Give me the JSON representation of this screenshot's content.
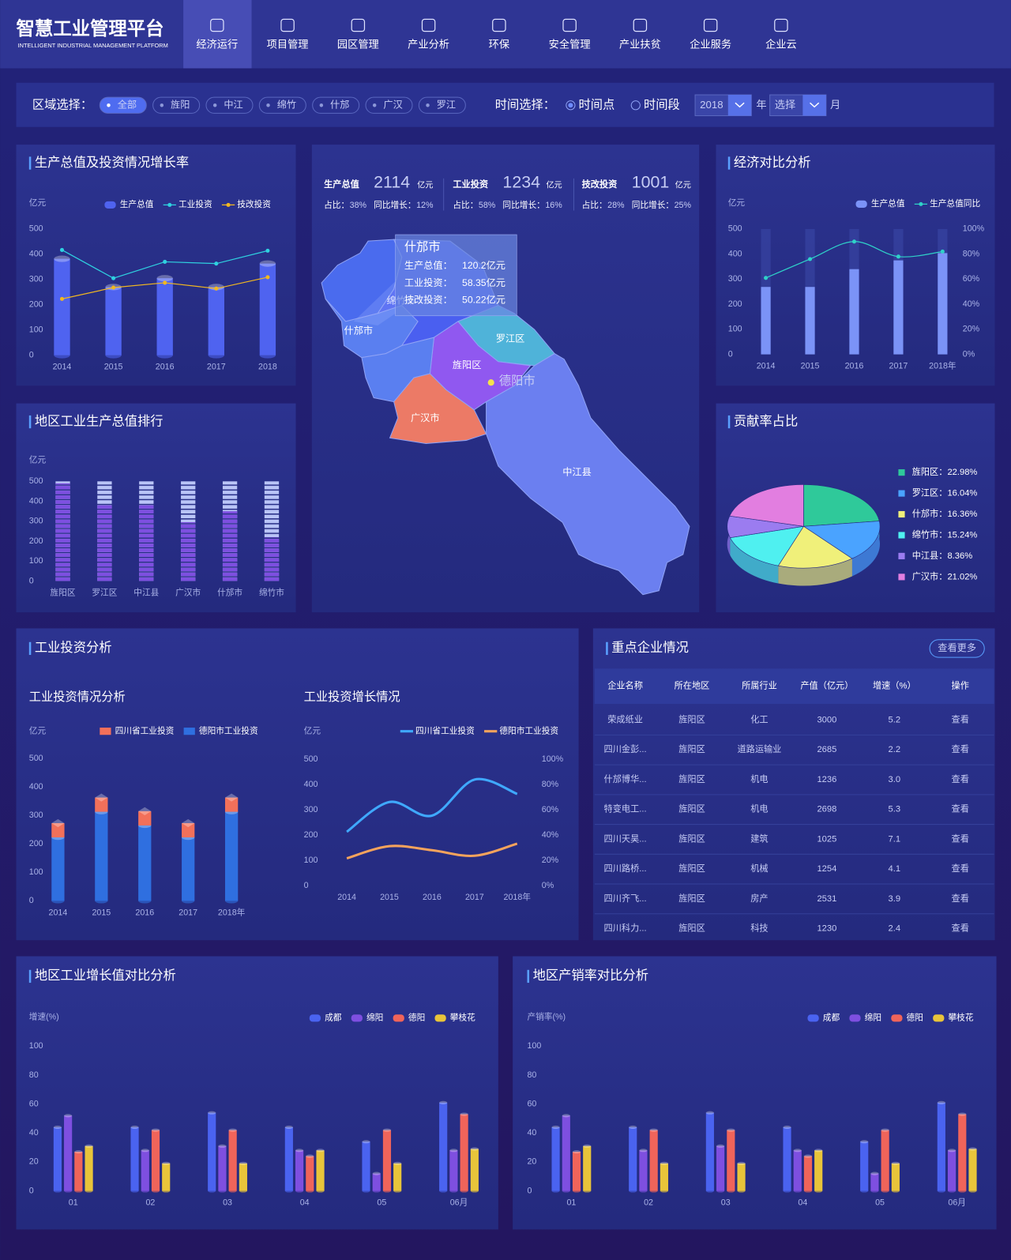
{
  "header": {
    "title": "智慧工业管理平台",
    "subtitle": "INTELLIGENT INDUSTRIAL MANAGEMENT PLATFORM",
    "nav": [
      "经济运行",
      "项目管理",
      "园区管理",
      "产业分析",
      "环保",
      "安全管理",
      "产业扶贫",
      "企业服务",
      "企业云"
    ]
  },
  "filters": {
    "region_label": "区域选择：",
    "regions": [
      "全部",
      "旌阳",
      "中江",
      "绵竹",
      "什邡",
      "广汉",
      "罗江"
    ],
    "time_label": "时间选择：",
    "time_options": [
      "时间点",
      "时间段"
    ],
    "year": "2018",
    "year_unit": "年",
    "month": "选择",
    "month_unit": "月"
  },
  "map": {
    "stats": [
      {
        "name": "生产总值",
        "value": 2114,
        "unit": "亿元",
        "share_label": "占比：",
        "share": "38%",
        "growth_label": "同比增长：",
        "growth": "12%"
      },
      {
        "name": "工业投资",
        "value": 1234,
        "unit": "亿元",
        "share_label": "占比：",
        "share": "58%",
        "growth_label": "同比增长：",
        "growth": "16%"
      },
      {
        "name": "技改投资",
        "value": 1001,
        "unit": "亿元",
        "share_label": "占比：",
        "share": "28%",
        "growth_label": "同比增长：",
        "growth": "25%"
      }
    ],
    "tooltip": {
      "title": "什邡市",
      "rows": [
        {
          "label": "生产总值：",
          "value": "120.2亿元"
        },
        {
          "label": "工业投资：",
          "value": "58.35亿元"
        },
        {
          "label": "技改投资：",
          "value": "50.22亿元"
        }
      ]
    },
    "regions": [
      "绵竹市",
      "什邡市",
      "罗江区",
      "旌阳区",
      "广汉市",
      "中江县"
    ],
    "city": "德阳市"
  },
  "investment_section": {
    "title": "工业投资分析"
  },
  "chart_data": [
    {
      "type": "bar",
      "title": "生产总值及投资情况增长率",
      "y_label": "亿元",
      "categories": [
        "2014",
        "2015",
        "2016",
        "2017",
        "2018"
      ],
      "ylim": [
        0,
        500
      ],
      "yticks": [
        0,
        100,
        200,
        300,
        400,
        500
      ],
      "series": [
        {
          "name": "生产总值",
          "type": "bar",
          "color": "#4f63f0",
          "values": [
            382,
            270,
            305,
            270,
            363
          ]
        },
        {
          "name": "工业投资",
          "type": "line",
          "color": "#2fd1e0",
          "values": [
            417,
            305,
            370,
            363,
            414
          ]
        },
        {
          "name": "技改投资",
          "type": "line",
          "color": "#f2b820",
          "values": [
            223,
            268,
            287,
            264,
            309
          ]
        }
      ]
    },
    {
      "type": "bar",
      "title": "地区工业生产总值排行",
      "y_label": "亿元",
      "categories": [
        "旌阳区",
        "罗江区",
        "中江县",
        "广汉市",
        "什邡市",
        "绵竹市"
      ],
      "ylim": [
        0,
        500
      ],
      "yticks": [
        0,
        100,
        200,
        300,
        400,
        500
      ],
      "values": [
        490,
        380,
        380,
        295,
        350,
        220
      ],
      "color": "#7d4fe0",
      "track_color": "#b9c4f7",
      "segmented": true
    },
    {
      "type": "bar",
      "title": "经济对比分析",
      "y_label": "亿元",
      "categories": [
        "2014",
        "2015",
        "2016",
        "2017",
        "2018年"
      ],
      "ylim": [
        0,
        500
      ],
      "yticks": [
        0,
        100,
        200,
        300,
        400,
        500
      ],
      "y2lim": [
        0,
        100
      ],
      "y2ticks": [
        {
          "value": 0,
          "label": "0%"
        },
        {
          "value": 20,
          "label": "20%"
        },
        {
          "value": 40,
          "label": "40%"
        },
        {
          "value": 60,
          "label": "60%"
        },
        {
          "value": 80,
          "label": "80%"
        },
        {
          "value": 100,
          "label": "100%"
        }
      ],
      "track_color": "#3a48a6",
      "smooth": true,
      "series": [
        {
          "name": "生产总值",
          "type": "bar",
          "color": "#7b93f7",
          "values": [
            269,
            269,
            340,
            375,
            404
          ]
        },
        {
          "name": "生产总值同比",
          "type": "line",
          "axis": "y2",
          "color": "#2fd1c8",
          "values": [
            61,
            76,
            90,
            78,
            82
          ]
        }
      ]
    },
    {
      "type": "pie",
      "title": "贡献率占比",
      "categories": [
        "旌阳区：",
        "罗江区：",
        "什邡市：",
        "绵竹市：",
        "中江县：",
        "广汉市："
      ],
      "values": [
        22.98,
        16.04,
        16.36,
        15.24,
        8.36,
        21.02
      ],
      "value_labels": [
        "22.98%",
        "16.04%",
        "16.36%",
        "15.24%",
        "8.36%",
        "21.02%"
      ],
      "colors": [
        "#2fc99a",
        "#4aa3ff",
        "#f0f07a",
        "#4ff0f0",
        "#9b7cf0",
        "#e27ee0"
      ]
    },
    {
      "type": "bar",
      "title": "工业投资情况分析",
      "y_label": "亿元",
      "categories": [
        "2014",
        "2015",
        "2016",
        "2017",
        "2018年"
      ],
      "ylim": [
        0,
        500
      ],
      "yticks": [
        0,
        100,
        200,
        300,
        400,
        500
      ],
      "stacked": true,
      "series": [
        {
          "name": "四川省工业投资",
          "type": "bar",
          "color": "#f2705a",
          "values": [
            50,
            50,
            50,
            50,
            50
          ]
        },
        {
          "name": "德阳市工业投资",
          "type": "bar",
          "color": "#2f6fe0",
          "values": [
            223,
            313,
            265,
            223,
            313
          ]
        }
      ]
    },
    {
      "type": "line",
      "title": "工业投资增长情况",
      "y_label": "亿元",
      "categories": [
        "2014",
        "2015",
        "2016",
        "2017",
        "2018年"
      ],
      "ylim": [
        0,
        500
      ],
      "yticks": [
        0,
        100,
        200,
        300,
        400,
        500
      ],
      "y2lim": [
        0,
        100
      ],
      "y2ticks": [
        {
          "value": 0,
          "label": "0%"
        },
        {
          "value": 20,
          "label": "20%"
        },
        {
          "value": 40,
          "label": "40%"
        },
        {
          "value": 60,
          "label": "60%"
        },
        {
          "value": 80,
          "label": "80%"
        },
        {
          "value": 100,
          "label": "100%"
        }
      ],
      "smooth": true,
      "series": [
        {
          "name": "四川省工业投资",
          "type": "line",
          "color": "#3fa9ff",
          "values": [
            213,
            331,
            277,
            420,
            363
          ]
        },
        {
          "name": "德阳市工业投资",
          "type": "line",
          "color": "#f5a35c",
          "values": [
            108,
            156,
            140,
            118,
            166
          ]
        }
      ]
    },
    {
      "type": "bar",
      "title": "地区工业增长值对比分析",
      "y_label": "增速(%)",
      "categories": [
        "01",
        "02",
        "03",
        "04",
        "05",
        "06月"
      ],
      "ylim": [
        0,
        100
      ],
      "yticks": [
        0,
        20,
        40,
        60,
        80,
        100
      ],
      "series": [
        {
          "name": "成都",
          "type": "bar",
          "color": "#4a63f0",
          "values": [
            44,
            44,
            54,
            44,
            34,
            61
          ]
        },
        {
          "name": "绵阳",
          "type": "bar",
          "color": "#7e4fe0",
          "values": [
            52,
            28,
            31,
            28,
            12,
            28
          ]
        },
        {
          "name": "德阳",
          "type": "bar",
          "color": "#f0645a",
          "values": [
            27,
            42,
            42,
            24,
            42,
            53
          ]
        },
        {
          "name": "攀枝花",
          "type": "bar",
          "color": "#e8c43a",
          "values": [
            31,
            19,
            19,
            28,
            19,
            29
          ]
        }
      ]
    },
    {
      "type": "bar",
      "title": "地区产销率对比分析",
      "y_label": "产销率(%)",
      "categories": [
        "01",
        "02",
        "03",
        "04",
        "05",
        "06月"
      ],
      "ylim": [
        0,
        100
      ],
      "yticks": [
        0,
        20,
        40,
        60,
        80,
        100
      ],
      "series": [
        {
          "name": "成都",
          "type": "bar",
          "color": "#4a63f0",
          "values": [
            44,
            44,
            54,
            44,
            34,
            61
          ]
        },
        {
          "name": "绵阳",
          "type": "bar",
          "color": "#7e4fe0",
          "values": [
            52,
            28,
            31,
            28,
            12,
            28
          ]
        },
        {
          "name": "德阳",
          "type": "bar",
          "color": "#f0645a",
          "values": [
            27,
            42,
            42,
            24,
            42,
            53
          ]
        },
        {
          "name": "攀枝花",
          "type": "bar",
          "color": "#e8c43a",
          "values": [
            31,
            19,
            19,
            28,
            19,
            29
          ]
        }
      ]
    }
  ],
  "table": {
    "title": "重点企业情况",
    "more": "查看更多",
    "columns": [
      "企业名称",
      "所在地区",
      "所属行业",
      "产值（亿元）",
      "增速（%）",
      "操作"
    ],
    "rows": [
      [
        "荣成纸业",
        "旌阳区",
        "化工",
        "3000",
        "5.2",
        "查看"
      ],
      [
        "四川金彭...",
        "旌阳区",
        "道路运输业",
        "2685",
        "2.2",
        "查看"
      ],
      [
        "什邡博华...",
        "旌阳区",
        "机电",
        "1236",
        "3.0",
        "查看"
      ],
      [
        "特变电工...",
        "旌阳区",
        "机电",
        "2698",
        "5.3",
        "查看"
      ],
      [
        "四川天昊...",
        "旌阳区",
        "建筑",
        "1025",
        "7.1",
        "查看"
      ],
      [
        "四川路桥...",
        "旌阳区",
        "机械",
        "1254",
        "4.1",
        "查看"
      ],
      [
        "四川齐飞...",
        "旌阳区",
        "房产",
        "2531",
        "3.9",
        "查看"
      ],
      [
        "四川科力...",
        "旌阳区",
        "科技",
        "1230",
        "2.4",
        "查看"
      ]
    ]
  }
}
